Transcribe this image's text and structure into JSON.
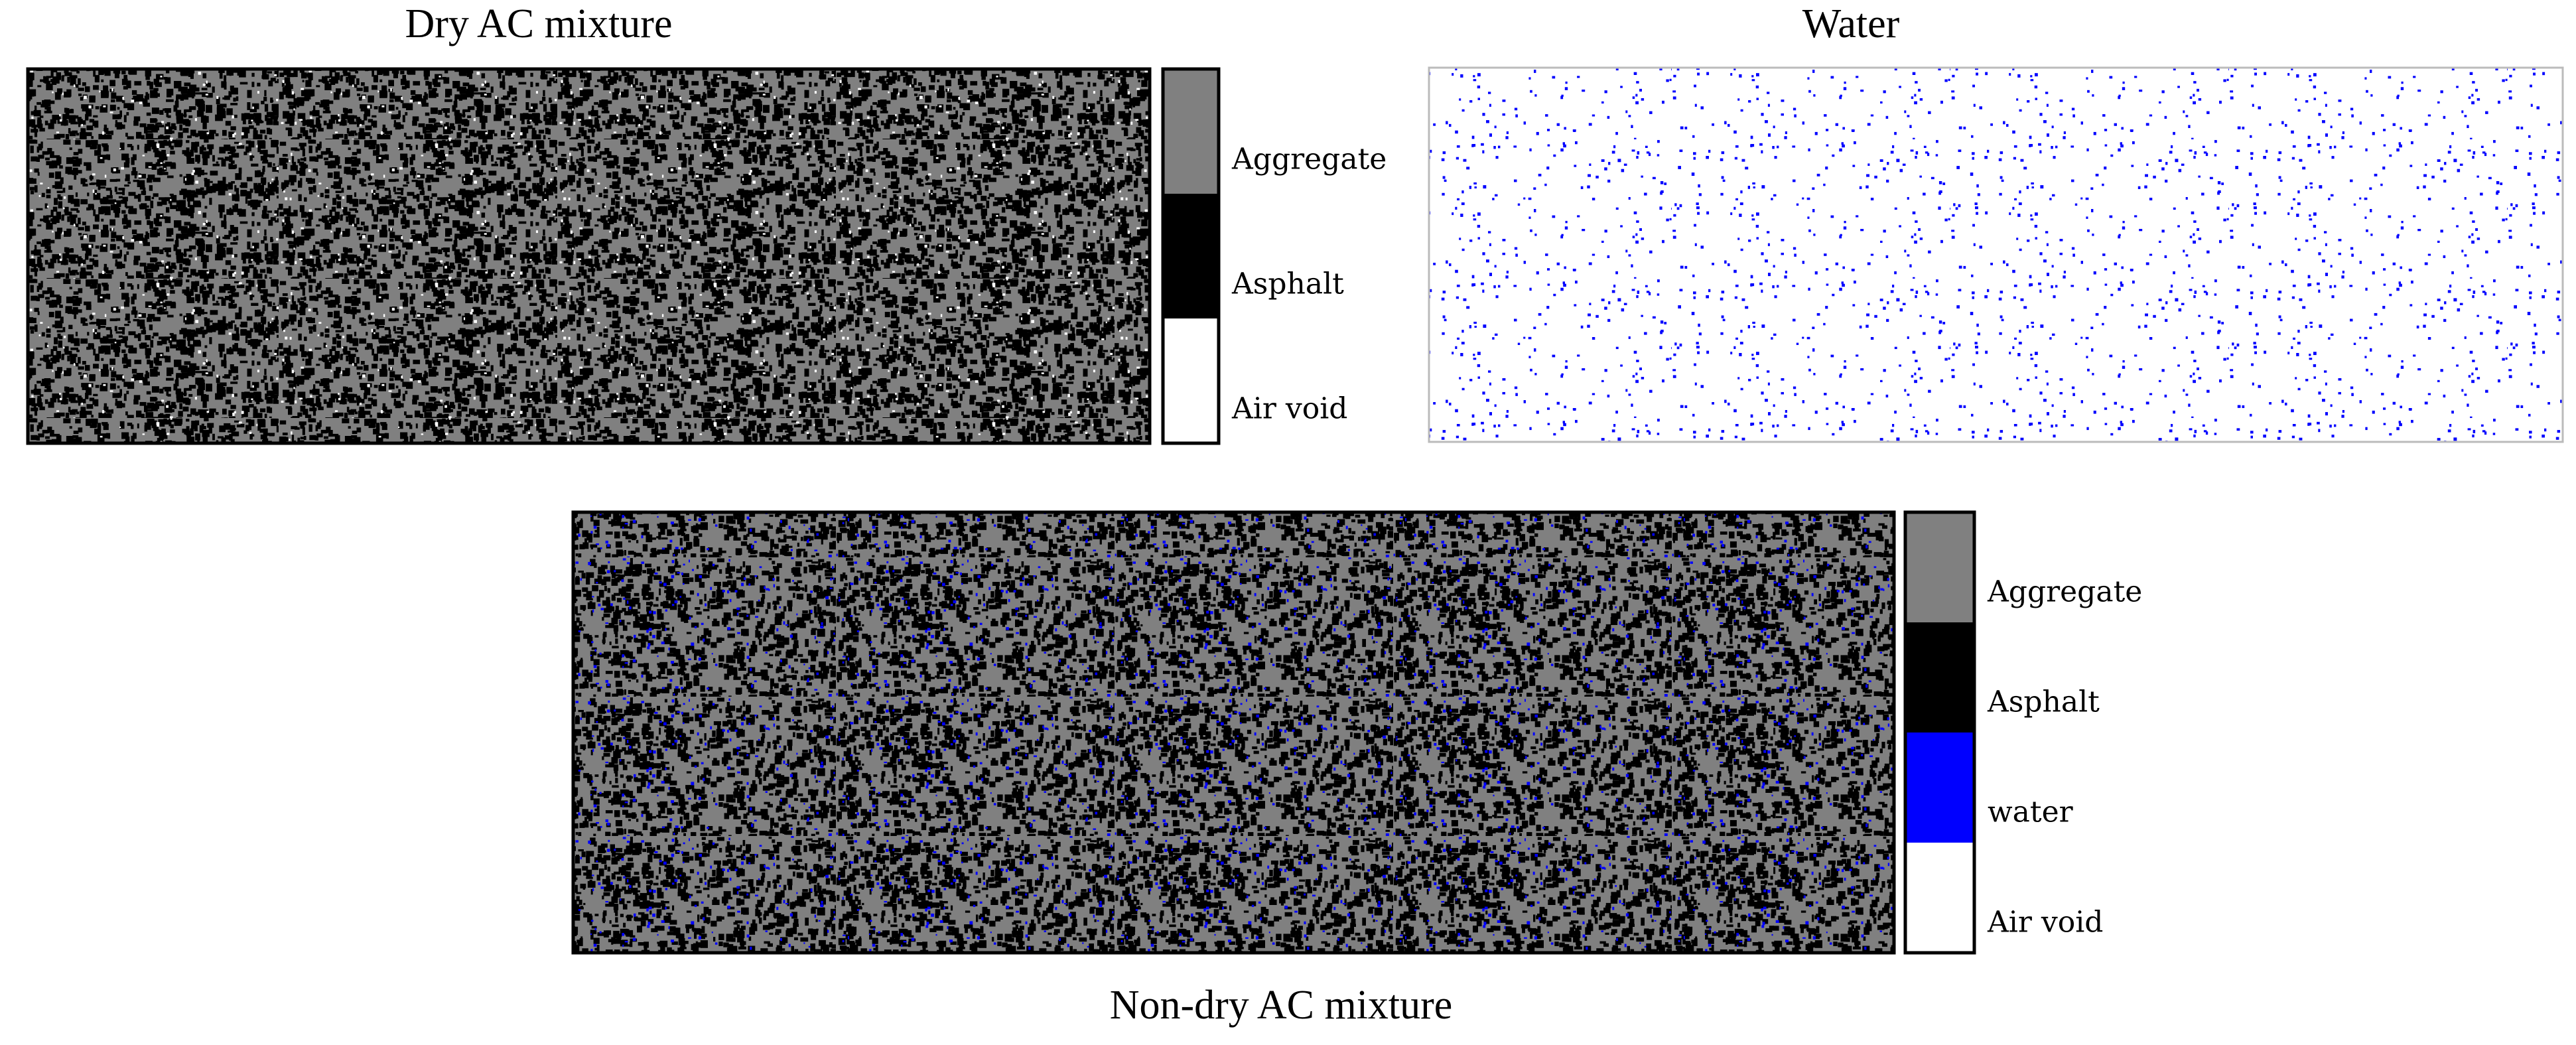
{
  "panels": [
    {
      "title": "Dry AC mixture",
      "legend": [
        {
          "label": "Aggregate",
          "color": "#808080"
        },
        {
          "label": "Asphalt",
          "color": "#000000"
        },
        {
          "label": "Air void",
          "color": "#ffffff"
        }
      ]
    },
    {
      "title": "Water",
      "color": "#0000ff"
    },
    {
      "title": "Non-dry AC mixture",
      "legend": [
        {
          "label": "Aggregate",
          "color": "#808080"
        },
        {
          "label": "Asphalt",
          "color": "#000000"
        },
        {
          "label": "water",
          "color": "#0000ff"
        },
        {
          "label": "Air void",
          "color": "#ffffff"
        }
      ]
    }
  ]
}
